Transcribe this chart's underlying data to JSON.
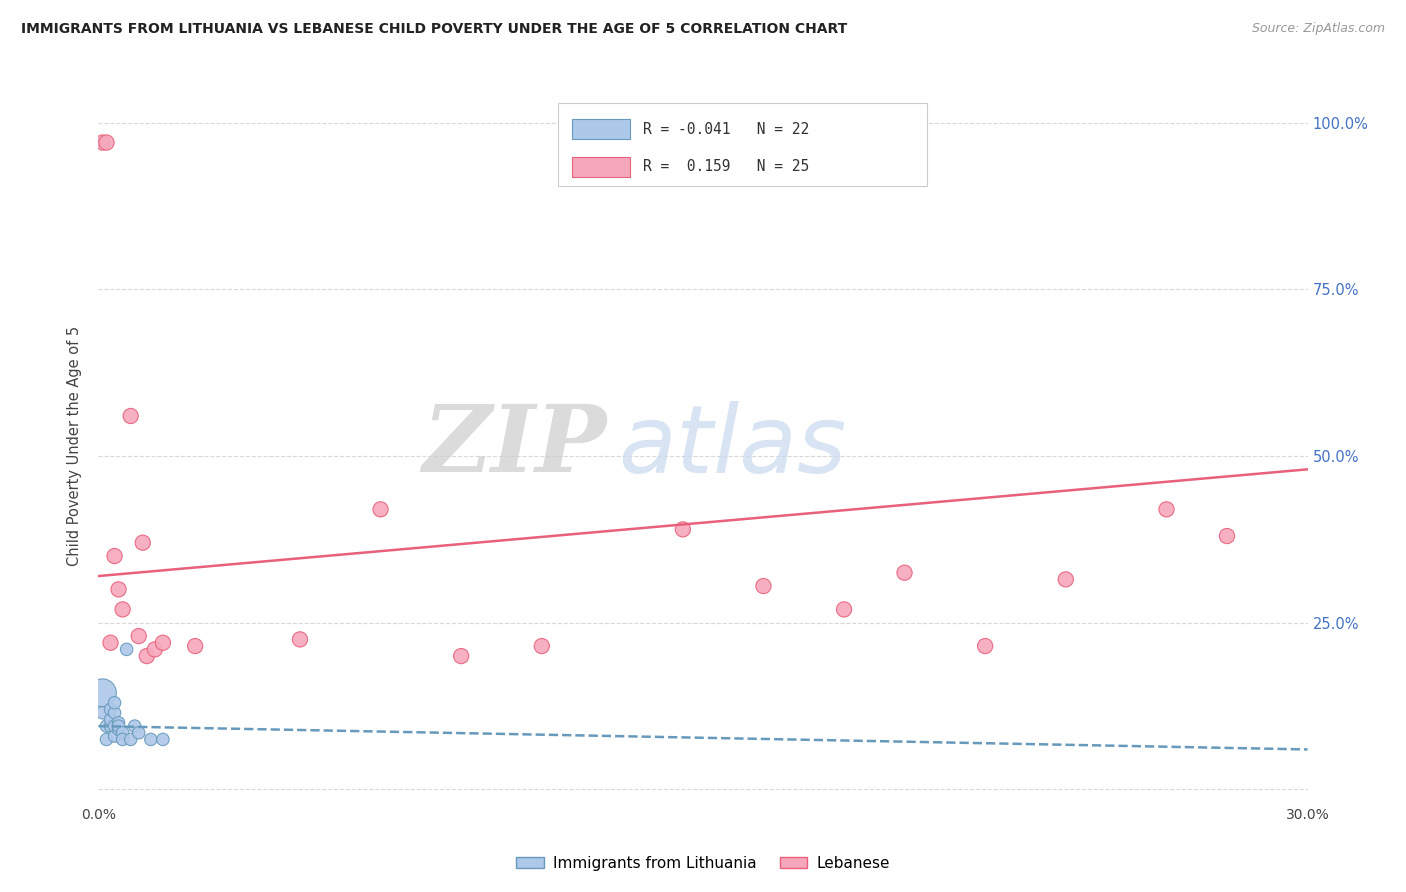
{
  "title": "IMMIGRANTS FROM LITHUANIA VS LEBANESE CHILD POVERTY UNDER THE AGE OF 5 CORRELATION CHART",
  "source": "Source: ZipAtlas.com",
  "ylabel": "Child Poverty Under the Age of 5",
  "xlim": [
    0.0,
    0.3
  ],
  "ylim": [
    -0.02,
    1.05
  ],
  "yticks": [
    0.0,
    0.25,
    0.5,
    0.75,
    1.0
  ],
  "ytick_labels": [
    "",
    "25.0%",
    "50.0%",
    "75.0%",
    "100.0%"
  ],
  "xticks": [
    0.0,
    0.05,
    0.1,
    0.15,
    0.2,
    0.25,
    0.3
  ],
  "xtick_labels": [
    "0.0%",
    "",
    "",
    "",
    "",
    "",
    "30.0%"
  ],
  "blue_label": "Immigrants from Lithuania",
  "pink_label": "Lebanese",
  "blue_R": -0.041,
  "blue_N": 22,
  "pink_R": 0.159,
  "pink_N": 25,
  "blue_color": "#adc8e8",
  "pink_color": "#f5a8bc",
  "blue_line_color": "#6699bb",
  "pink_line_color": "#e8607a",
  "background_color": "#ffffff",
  "grid_color": "#d8d8d8",
  "watermark_zip": "ZIP",
  "watermark_atlas": "atlas",
  "blue_x": [
    0.001,
    0.001,
    0.002,
    0.002,
    0.003,
    0.003,
    0.003,
    0.004,
    0.004,
    0.004,
    0.004,
    0.005,
    0.005,
    0.005,
    0.006,
    0.006,
    0.007,
    0.008,
    0.009,
    0.01,
    0.013,
    0.016
  ],
  "blue_y": [
    0.145,
    0.115,
    0.095,
    0.075,
    0.095,
    0.105,
    0.12,
    0.08,
    0.095,
    0.115,
    0.13,
    0.09,
    0.1,
    0.095,
    0.085,
    0.075,
    0.21,
    0.075,
    0.095,
    0.085,
    0.075,
    0.075
  ],
  "blue_sizes": [
    400,
    80,
    80,
    80,
    80,
    80,
    80,
    80,
    80,
    80,
    80,
    80,
    80,
    80,
    80,
    80,
    80,
    80,
    80,
    80,
    80,
    80
  ],
  "pink_x": [
    0.001,
    0.002,
    0.003,
    0.004,
    0.005,
    0.006,
    0.008,
    0.01,
    0.011,
    0.012,
    0.014,
    0.016,
    0.024,
    0.05,
    0.07,
    0.09,
    0.11,
    0.145,
    0.165,
    0.185,
    0.2,
    0.22,
    0.24,
    0.265,
    0.28
  ],
  "pink_y": [
    0.97,
    0.97,
    0.22,
    0.35,
    0.3,
    0.27,
    0.56,
    0.23,
    0.37,
    0.2,
    0.21,
    0.22,
    0.215,
    0.225,
    0.42,
    0.2,
    0.215,
    0.39,
    0.305,
    0.27,
    0.325,
    0.215,
    0.315,
    0.42,
    0.38
  ],
  "pink_sizes": [
    120,
    120,
    120,
    120,
    120,
    120,
    120,
    120,
    120,
    120,
    120,
    120,
    120,
    120,
    120,
    120,
    120,
    120,
    120,
    120,
    120,
    120,
    120,
    120,
    120
  ],
  "blue_trend_x": [
    0.0,
    0.3
  ],
  "blue_trend_y": [
    0.095,
    0.06
  ],
  "pink_trend_x": [
    0.0,
    0.3
  ],
  "pink_trend_y": [
    0.32,
    0.48
  ]
}
